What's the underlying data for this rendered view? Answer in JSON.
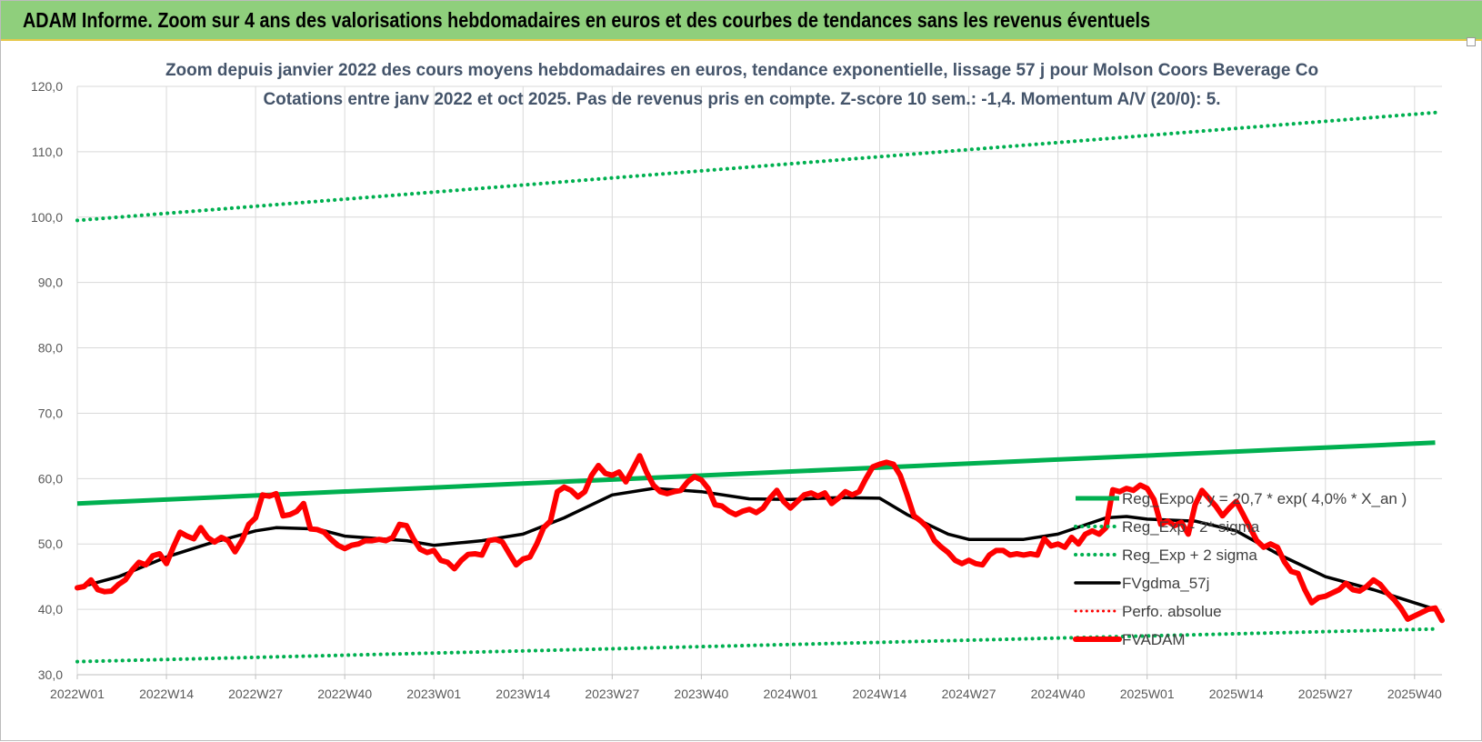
{
  "header": {
    "title": "ADAM Informe. Zoom sur 4 ans des valorisations hebdomadaires en euros et des courbes de tendances sans les revenus éventuels"
  },
  "colors": {
    "header_bg": "#8fcf7c",
    "reg_expo": "#00b050",
    "reg_sigma": "#00b050",
    "fvgdma": "#000000",
    "perfo": "#ff0000",
    "fvadam": "#ff0000",
    "grid": "#d9d9d9"
  },
  "chart_data": {
    "type": "line",
    "title": "Zoom depuis janvier 2022 des cours moyens hebdomadaires en euros, tendance exponentielle, lissage 57 j pour Molson Coors Beverage Co",
    "subtitle": "Cotations entre janv 2022 et oct 2025. Pas de revenus pris en compte. Z-score 10 sem.: -1,4.  Momentum A/V (20/0): 5.",
    "ylim": [
      30,
      120
    ],
    "yticks": [
      "30,0",
      "40,0",
      "50,0",
      "60,0",
      "70,0",
      "80,0",
      "90,0",
      "100,0",
      "110,0",
      "120,0"
    ],
    "ytick_values": [
      30,
      40,
      50,
      60,
      70,
      80,
      90,
      100,
      110,
      120
    ],
    "xticks": [
      "2022W01",
      "2022W14",
      "2022W27",
      "2022W40",
      "2023W01",
      "2023W14",
      "2023W27",
      "2023W40",
      "2024W01",
      "2024W14",
      "2024W27",
      "2024W40",
      "2025W01",
      "2025W14",
      "2025W27",
      "2025W40"
    ],
    "x_start": "2022W01",
    "x_end": "2025W43",
    "grid": true,
    "legend_position": "right",
    "series": [
      {
        "name": "Reg_Expo : y = 20,7 * exp( 4,0% * X_an )",
        "style": "solid",
        "points": [
          [
            "2022W01",
            56.2
          ],
          [
            "2025W43",
            65.5
          ]
        ]
      },
      {
        "name": "Reg_Exp - 2* sigma",
        "style": "dotted",
        "points": [
          [
            "2022W01",
            32.0
          ],
          [
            "2025W43",
            37.0
          ]
        ]
      },
      {
        "name": "Reg_Exp + 2 sigma",
        "style": "dotted",
        "points": [
          [
            "2022W01",
            99.5
          ],
          [
            "2025W43",
            116.0
          ]
        ]
      },
      {
        "name": "FVgdma_57j",
        "style": "solid",
        "points": [
          [
            "2022W01",
            43.3
          ],
          [
            "2022W07",
            45.0
          ],
          [
            "2022W14",
            48.0
          ],
          [
            "2022W20",
            50.0
          ],
          [
            "2022W27",
            52.0
          ],
          [
            "2022W30",
            52.5
          ],
          [
            "2022W36",
            52.3
          ],
          [
            "2022W40",
            51.2
          ],
          [
            "2022W49",
            50.5
          ],
          [
            "2023W01",
            49.8
          ],
          [
            "2023W08",
            50.5
          ],
          [
            "2023W14",
            51.5
          ],
          [
            "2023W20",
            54.0
          ],
          [
            "2023W27",
            57.5
          ],
          [
            "2023W33",
            58.5
          ],
          [
            "2023W40",
            58.0
          ],
          [
            "2023W47",
            56.9
          ],
          [
            "2024W01",
            56.8
          ],
          [
            "2024W08",
            57.1
          ],
          [
            "2024W14",
            57.0
          ],
          [
            "2024W18",
            54.5
          ],
          [
            "2024W24",
            51.5
          ],
          [
            "2024W27",
            50.7
          ],
          [
            "2024W35",
            50.7
          ],
          [
            "2024W40",
            51.5
          ],
          [
            "2024W47",
            54.0
          ],
          [
            "2024W50",
            54.2
          ],
          [
            "2025W01",
            53.8
          ],
          [
            "2025W08",
            53.5
          ],
          [
            "2025W14",
            52.0
          ],
          [
            "2025W20",
            48.5
          ],
          [
            "2025W27",
            45.0
          ],
          [
            "2025W34",
            43.0
          ],
          [
            "2025W40",
            41.0
          ],
          [
            "2025W43",
            40.0
          ]
        ]
      },
      {
        "name": "Perfo. absolue",
        "style": "dotted",
        "points": []
      },
      {
        "name": "FVADAM",
        "style": "solid",
        "points": [
          [
            "2022W01",
            43.3
          ],
          [
            "2022W02",
            43.5
          ],
          [
            "2022W03",
            44.5
          ],
          [
            "2022W04",
            43.0
          ],
          [
            "2022W05",
            42.7
          ],
          [
            "2022W06",
            42.8
          ],
          [
            "2022W07",
            43.8
          ],
          [
            "2022W08",
            44.5
          ],
          [
            "2022W09",
            46.0
          ],
          [
            "2022W10",
            47.2
          ],
          [
            "2022W11",
            46.8
          ],
          [
            "2022W12",
            48.2
          ],
          [
            "2022W13",
            48.5
          ],
          [
            "2022W14",
            47.0
          ],
          [
            "2022W15",
            49.5
          ],
          [
            "2022W16",
            51.8
          ],
          [
            "2022W17",
            51.2
          ],
          [
            "2022W18",
            50.8
          ],
          [
            "2022W19",
            52.5
          ],
          [
            "2022W20",
            51.0
          ],
          [
            "2022W21",
            50.3
          ],
          [
            "2022W22",
            51.0
          ],
          [
            "2022W23",
            50.5
          ],
          [
            "2022W24",
            48.8
          ],
          [
            "2022W25",
            50.5
          ],
          [
            "2022W26",
            53.0
          ],
          [
            "2022W27",
            54.0
          ],
          [
            "2022W28",
            57.5
          ],
          [
            "2022W29",
            57.3
          ],
          [
            "2022W30",
            57.7
          ],
          [
            "2022W31",
            54.3
          ],
          [
            "2022W32",
            54.5
          ],
          [
            "2022W33",
            55.0
          ],
          [
            "2022W34",
            56.2
          ],
          [
            "2022W35",
            52.3
          ],
          [
            "2022W36",
            52.2
          ],
          [
            "2022W37",
            51.8
          ],
          [
            "2022W38",
            50.7
          ],
          [
            "2022W39",
            49.8
          ],
          [
            "2022W40",
            49.3
          ],
          [
            "2022W41",
            49.8
          ],
          [
            "2022W42",
            50.0
          ],
          [
            "2022W43",
            50.5
          ],
          [
            "2022W44",
            50.5
          ],
          [
            "2022W45",
            50.7
          ],
          [
            "2022W46",
            50.5
          ],
          [
            "2022W47",
            51.0
          ],
          [
            "2022W48",
            53.0
          ],
          [
            "2022W49",
            52.8
          ],
          [
            "2022W50",
            50.8
          ],
          [
            "2022W51",
            49.2
          ],
          [
            "2022W52",
            48.7
          ],
          [
            "2023W01",
            49.0
          ],
          [
            "2023W02",
            47.5
          ],
          [
            "2023W03",
            47.2
          ],
          [
            "2023W04",
            46.2
          ],
          [
            "2023W05",
            47.5
          ],
          [
            "2023W06",
            48.4
          ],
          [
            "2023W07",
            48.5
          ],
          [
            "2023W08",
            48.3
          ],
          [
            "2023W09",
            50.5
          ],
          [
            "2023W10",
            50.7
          ],
          [
            "2023W11",
            50.3
          ],
          [
            "2023W12",
            48.5
          ],
          [
            "2023W13",
            46.8
          ],
          [
            "2023W14",
            47.7
          ],
          [
            "2023W15",
            48.0
          ],
          [
            "2023W16",
            50.0
          ],
          [
            "2023W17",
            52.5
          ],
          [
            "2023W18",
            53.5
          ],
          [
            "2023W19",
            58.0
          ],
          [
            "2023W20",
            58.7
          ],
          [
            "2023W21",
            58.2
          ],
          [
            "2023W22",
            57.2
          ],
          [
            "2023W23",
            58.0
          ],
          [
            "2023W24",
            60.5
          ],
          [
            "2023W25",
            62.0
          ],
          [
            "2023W26",
            60.8
          ],
          [
            "2023W27",
            60.5
          ],
          [
            "2023W28",
            61.0
          ],
          [
            "2023W29",
            59.5
          ],
          [
            "2023W30",
            61.5
          ],
          [
            "2023W31",
            63.5
          ],
          [
            "2023W32",
            61.0
          ],
          [
            "2023W33",
            59.0
          ],
          [
            "2023W34",
            58.0
          ],
          [
            "2023W35",
            57.7
          ],
          [
            "2023W36",
            58.0
          ],
          [
            "2023W37",
            58.2
          ],
          [
            "2023W38",
            59.5
          ],
          [
            "2023W39",
            60.3
          ],
          [
            "2023W40",
            59.8
          ],
          [
            "2023W41",
            58.5
          ],
          [
            "2023W42",
            56.0
          ],
          [
            "2023W43",
            55.8
          ],
          [
            "2023W44",
            55.0
          ],
          [
            "2023W45",
            54.5
          ],
          [
            "2023W46",
            55.0
          ],
          [
            "2023W47",
            55.3
          ],
          [
            "2023W48",
            54.8
          ],
          [
            "2023W49",
            55.5
          ],
          [
            "2023W50",
            57.0
          ],
          [
            "2023W51",
            58.2
          ],
          [
            "2023W52",
            56.5
          ],
          [
            "2024W01",
            55.5
          ],
          [
            "2024W02",
            56.5
          ],
          [
            "2024W03",
            57.5
          ],
          [
            "2024W04",
            57.8
          ],
          [
            "2024W05",
            57.3
          ],
          [
            "2024W06",
            57.8
          ],
          [
            "2024W07",
            56.2
          ],
          [
            "2024W08",
            57.0
          ],
          [
            "2024W09",
            58.0
          ],
          [
            "2024W10",
            57.5
          ],
          [
            "2024W11",
            58.0
          ],
          [
            "2024W12",
            60.0
          ],
          [
            "2024W13",
            61.8
          ],
          [
            "2024W14",
            62.2
          ],
          [
            "2024W15",
            62.5
          ],
          [
            "2024W16",
            62.2
          ],
          [
            "2024W17",
            60.5
          ],
          [
            "2024W18",
            57.5
          ],
          [
            "2024W19",
            54.3
          ],
          [
            "2024W20",
            53.5
          ],
          [
            "2024W21",
            52.5
          ],
          [
            "2024W22",
            50.5
          ],
          [
            "2024W23",
            49.5
          ],
          [
            "2024W24",
            48.7
          ],
          [
            "2024W25",
            47.5
          ],
          [
            "2024W26",
            47.0
          ],
          [
            "2024W27",
            47.5
          ],
          [
            "2024W28",
            47.0
          ],
          [
            "2024W29",
            46.8
          ],
          [
            "2024W30",
            48.3
          ],
          [
            "2024W31",
            49.0
          ],
          [
            "2024W32",
            49.0
          ],
          [
            "2024W33",
            48.3
          ],
          [
            "2024W34",
            48.5
          ],
          [
            "2024W35",
            48.3
          ],
          [
            "2024W36",
            48.5
          ],
          [
            "2024W37",
            48.3
          ],
          [
            "2024W38",
            50.8
          ],
          [
            "2024W39",
            49.7
          ],
          [
            "2024W40",
            50.0
          ],
          [
            "2024W41",
            49.5
          ],
          [
            "2024W42",
            51.0
          ],
          [
            "2024W43",
            50.0
          ],
          [
            "2024W44",
            51.5
          ],
          [
            "2024W45",
            52.0
          ],
          [
            "2024W46",
            51.5
          ],
          [
            "2024W47",
            52.5
          ],
          [
            "2024W48",
            58.3
          ],
          [
            "2024W49",
            58.0
          ],
          [
            "2024W50",
            58.5
          ],
          [
            "2024W51",
            58.2
          ],
          [
            "2024W52",
            59.0
          ],
          [
            "2025W01",
            58.5
          ],
          [
            "2025W02",
            56.8
          ],
          [
            "2025W03",
            53.0
          ],
          [
            "2025W04",
            53.5
          ],
          [
            "2025W05",
            52.8
          ],
          [
            "2025W06",
            53.3
          ],
          [
            "2025W07",
            51.5
          ],
          [
            "2025W08",
            56.0
          ],
          [
            "2025W09",
            58.2
          ],
          [
            "2025W10",
            57.0
          ],
          [
            "2025W11",
            55.8
          ],
          [
            "2025W12",
            54.3
          ],
          [
            "2025W13",
            55.5
          ],
          [
            "2025W14",
            56.5
          ],
          [
            "2025W15",
            54.5
          ],
          [
            "2025W16",
            52.5
          ],
          [
            "2025W17",
            50.5
          ],
          [
            "2025W18",
            49.5
          ],
          [
            "2025W19",
            50.0
          ],
          [
            "2025W20",
            49.5
          ],
          [
            "2025W21",
            47.3
          ],
          [
            "2025W22",
            45.8
          ],
          [
            "2025W23",
            45.5
          ],
          [
            "2025W24",
            43.0
          ],
          [
            "2025W25",
            41.0
          ],
          [
            "2025W26",
            41.8
          ],
          [
            "2025W27",
            42.0
          ],
          [
            "2025W28",
            42.5
          ],
          [
            "2025W29",
            43.0
          ],
          [
            "2025W30",
            44.0
          ],
          [
            "2025W31",
            43.0
          ],
          [
            "2025W32",
            42.8
          ],
          [
            "2025W33",
            43.5
          ],
          [
            "2025W34",
            44.5
          ],
          [
            "2025W35",
            43.8
          ],
          [
            "2025W36",
            42.5
          ],
          [
            "2025W37",
            41.5
          ],
          [
            "2025W38",
            40.2
          ],
          [
            "2025W39",
            38.5
          ],
          [
            "2025W40",
            39.0
          ],
          [
            "2025W41",
            39.5
          ],
          [
            "2025W42",
            40.0
          ],
          [
            "2025W43",
            40.2
          ],
          [
            "2025W44",
            38.3
          ]
        ]
      }
    ]
  }
}
